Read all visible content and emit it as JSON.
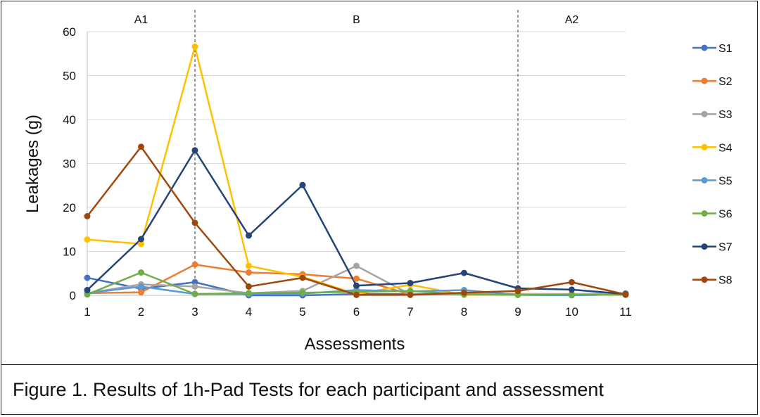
{
  "caption": "Figure 1. Results of 1h-Pad Tests for each participant and assessment",
  "chart_data": {
    "type": "line",
    "xlabel": "Assessments",
    "ylabel": "Leakages (g)",
    "x": [
      1,
      2,
      3,
      4,
      5,
      6,
      7,
      8,
      9,
      10,
      11
    ],
    "ylim": [
      0,
      60
    ],
    "yticks": [
      0,
      10,
      20,
      30,
      40,
      50,
      60
    ],
    "grid": true,
    "legend": "right",
    "phases": [
      {
        "label": "A1",
        "from": 1,
        "to": 3
      },
      {
        "label": "B",
        "from": 3,
        "to": 9
      },
      {
        "label": "A2",
        "from": 9,
        "to": 11
      }
    ],
    "phase_dividers": [
      3,
      9
    ],
    "series": [
      {
        "name": "S1",
        "color": "#4472C4",
        "values": [
          4.0,
          1.5,
          3.0,
          0.0,
          0.0,
          0.3,
          0.3,
          0.3,
          0.3,
          0.2,
          0.3
        ]
      },
      {
        "name": "S2",
        "color": "#ED7D31",
        "values": [
          0.5,
          0.7,
          7.0,
          5.2,
          4.8,
          3.8,
          0.2,
          0.3,
          0.3,
          0.3,
          0.2
        ]
      },
      {
        "name": "S3",
        "color": "#A5A5A5",
        "values": [
          0.5,
          2.5,
          2.0,
          0.5,
          1.0,
          6.7,
          0.2,
          0.5,
          0.3,
          0.3,
          0.5
        ]
      },
      {
        "name": "S4",
        "color": "#FFC000",
        "values": [
          12.7,
          11.7,
          56.6,
          6.7,
          4.2,
          0.3,
          2.4,
          0.1,
          0.2,
          0.3,
          0.1
        ]
      },
      {
        "name": "S5",
        "color": "#5B9BD5",
        "values": [
          0.5,
          2.0,
          0.3,
          0.3,
          0.4,
          1.2,
          0.9,
          1.2,
          0.1,
          0.0,
          0.2
        ]
      },
      {
        "name": "S6",
        "color": "#70AD47",
        "values": [
          0.2,
          5.2,
          0.3,
          0.5,
          0.6,
          0.8,
          1.0,
          0.2,
          0.1,
          0.2,
          0.1
        ]
      },
      {
        "name": "S7",
        "color": "#264478",
        "values": [
          1.2,
          12.8,
          33.0,
          13.6,
          25.1,
          2.2,
          2.8,
          5.1,
          1.6,
          1.3,
          0.3
        ]
      },
      {
        "name": "S8",
        "color": "#9E480E",
        "values": [
          18.0,
          33.8,
          16.5,
          2.0,
          4.0,
          0.1,
          0.1,
          0.6,
          1.0,
          3.0,
          0.2
        ]
      }
    ]
  }
}
